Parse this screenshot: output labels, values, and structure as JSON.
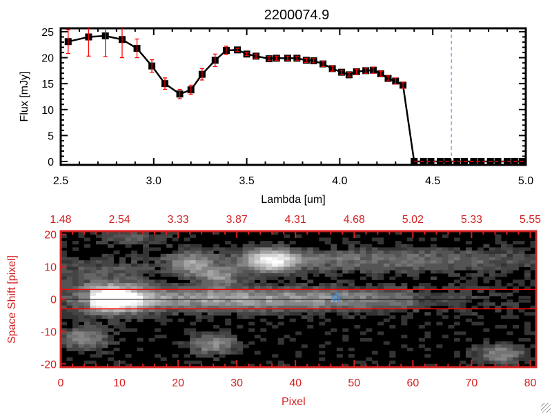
{
  "chart_data": [
    {
      "type": "line",
      "title": "2200074.9",
      "xlabel": "Lambda [um]",
      "ylabel": "Flux [mJy]",
      "xlim": [
        2.5,
        5.0
      ],
      "ylim": [
        -1,
        26
      ],
      "xticks": [
        2.5,
        3.0,
        3.5,
        4.0,
        4.5,
        5.0
      ],
      "xtick_labels": [
        "2.5",
        "3.0",
        "3.5",
        "4.0",
        "4.5",
        "5.0"
      ],
      "yticks": [
        0,
        5,
        10,
        15,
        20,
        25
      ],
      "ytick_labels": [
        "0",
        "5",
        "10",
        "15",
        "20",
        "25"
      ],
      "series": [
        {
          "name": "flux",
          "x": [
            2.54,
            2.65,
            2.74,
            2.83,
            2.91,
            2.99,
            3.06,
            3.14,
            3.2,
            3.26,
            3.33,
            3.39,
            3.45,
            3.5,
            3.55,
            3.62,
            3.66,
            3.72,
            3.77,
            3.82,
            3.86,
            3.91,
            3.96,
            4.01,
            4.05,
            4.09,
            4.14,
            4.18,
            4.22,
            4.26,
            4.3,
            4.34,
            4.4,
            4.45,
            4.49,
            4.54,
            4.58,
            4.63,
            4.67,
            4.72,
            4.76,
            4.81,
            4.85,
            4.9,
            4.94,
            4.98
          ],
          "y": [
            23.1,
            24.0,
            24.2,
            23.5,
            21.8,
            18.4,
            15.0,
            13.0,
            13.8,
            16.8,
            19.5,
            21.4,
            21.5,
            20.7,
            20.3,
            19.8,
            19.9,
            19.9,
            19.9,
            19.5,
            19.4,
            18.8,
            17.9,
            17.2,
            16.7,
            17.3,
            17.5,
            17.6,
            16.9,
            16.0,
            15.5,
            14.7,
            0,
            0,
            0,
            0,
            0,
            0,
            0,
            0,
            0,
            0,
            0,
            0,
            0,
            0
          ],
          "err": [
            2.3,
            3.7,
            4.0,
            3.5,
            1.8,
            1.2,
            1.1,
            0.9,
            0.9,
            1.1,
            1.2,
            0.8,
            0.3,
            0.3,
            0.4,
            0.4,
            0.4,
            0.4,
            0.4,
            0.4,
            0.4,
            0.5,
            0.5,
            0.4,
            0.4,
            0.5,
            0.5,
            0.6,
            0.5,
            0.5,
            0.6,
            0.6,
            0,
            0,
            0,
            0,
            0,
            0,
            0,
            0,
            0,
            0,
            0,
            0,
            0,
            0
          ]
        }
      ],
      "vline_x": 4.6,
      "zero_line_from": 4.4,
      "colors": {
        "line": "#000000",
        "errorbar": "#ff0000",
        "vline": "#3a8ee6",
        "zero_line": "#ff0000"
      }
    },
    {
      "type": "heatmap",
      "xlabel": "Pixel",
      "ylabel": "Space Shift [pixel]",
      "xlim": [
        0,
        81
      ],
      "ylim": [
        -21,
        21
      ],
      "xticks": [
        0,
        10,
        20,
        30,
        40,
        50,
        60,
        70,
        80
      ],
      "xtick_labels": [
        "0",
        "10",
        "20",
        "30",
        "40",
        "50",
        "60",
        "70",
        "80"
      ],
      "yticks": [
        -20,
        -10,
        0,
        10,
        20
      ],
      "ytick_labels": [
        "-20",
        "-10",
        "0",
        "10",
        "20"
      ],
      "top_axis_labels": [
        "1.48",
        "2.54",
        "3.33",
        "3.87",
        "4.31",
        "4.68",
        "5.02",
        "5.33",
        "5.55"
      ],
      "aperture_lines": [
        3,
        -3
      ],
      "center_line": 0,
      "star_marker": {
        "x": 47,
        "y": 0.5
      },
      "sources": [
        {
          "x": 9,
          "y": 0,
          "amp": 1.0,
          "sx": 3.5,
          "sy": 2.8
        },
        {
          "x": 30,
          "y": 0,
          "amp": 0.55,
          "sx": 30,
          "sy": 2.6
        },
        {
          "x": 36,
          "y": 12,
          "amp": 0.75,
          "sx": 3,
          "sy": 2.5
        },
        {
          "x": 55,
          "y": 12,
          "amp": 0.35,
          "sx": 22,
          "sy": 2.5
        },
        {
          "x": 22,
          "y": 11,
          "amp": 0.45,
          "sx": 2.5,
          "sy": 2.5
        },
        {
          "x": 27,
          "y": 7,
          "amp": 0.45,
          "sx": 2.5,
          "sy": 2.2
        },
        {
          "x": 4,
          "y": -12,
          "amp": 0.45,
          "sx": 3,
          "sy": 2.5
        },
        {
          "x": 26,
          "y": -14,
          "amp": 0.45,
          "sx": 3,
          "sy": 2.2
        },
        {
          "x": 75,
          "y": -17,
          "amp": 0.45,
          "sx": 3,
          "sy": 2.2
        },
        {
          "x": 12,
          "y": 19,
          "amp": 0.25,
          "sx": 4,
          "sy": 1.5
        },
        {
          "x": 5,
          "y": 8,
          "amp": 0.22,
          "sx": 8,
          "sy": 3
        }
      ],
      "colors": {
        "axis": "#d42020",
        "aperture": "#ff0000",
        "star": "#3a8ee6"
      }
    }
  ]
}
